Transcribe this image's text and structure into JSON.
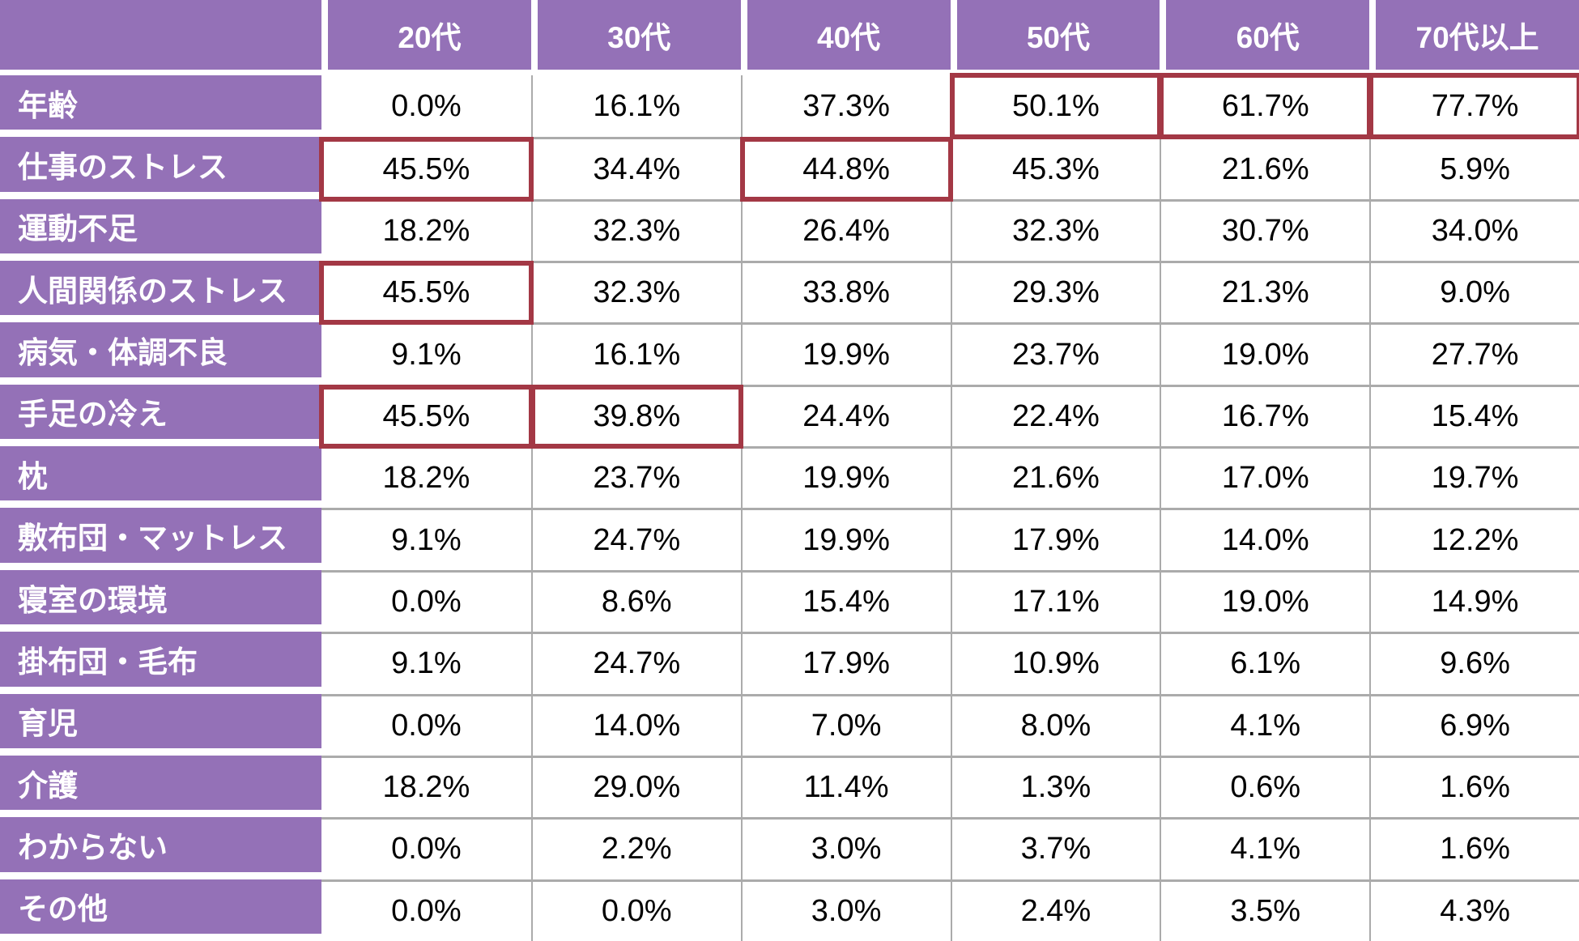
{
  "chart_data": {
    "type": "table",
    "title": "",
    "unit": "%",
    "columns": [
      "20代",
      "30代",
      "40代",
      "50代",
      "60代",
      "70代以上"
    ],
    "rows": [
      {
        "label": "年齢",
        "values": [
          0.0,
          16.1,
          37.3,
          50.1,
          61.7,
          77.7
        ],
        "display": [
          "0.0%",
          "16.1%",
          "37.3%",
          "50.1%",
          "61.7%",
          "77.7%"
        ]
      },
      {
        "label": "仕事のストレス",
        "values": [
          45.5,
          34.4,
          44.8,
          45.3,
          21.6,
          5.9
        ],
        "display": [
          "45.5%",
          "34.4%",
          "44.8%",
          "45.3%",
          "21.6%",
          "5.9%"
        ]
      },
      {
        "label": "運動不足",
        "values": [
          18.2,
          32.3,
          26.4,
          32.3,
          30.7,
          34.0
        ],
        "display": [
          "18.2%",
          "32.3%",
          "26.4%",
          "32.3%",
          "30.7%",
          "34.0%"
        ]
      },
      {
        "label": "人間関係のストレス",
        "values": [
          45.5,
          32.3,
          33.8,
          29.3,
          21.3,
          9.0
        ],
        "display": [
          "45.5%",
          "32.3%",
          "33.8%",
          "29.3%",
          "21.3%",
          "9.0%"
        ]
      },
      {
        "label": "病気・体調不良",
        "values": [
          9.1,
          16.1,
          19.9,
          23.7,
          19.0,
          27.7
        ],
        "display": [
          "9.1%",
          "16.1%",
          "19.9%",
          "23.7%",
          "19.0%",
          "27.7%"
        ]
      },
      {
        "label": "手足の冷え",
        "values": [
          45.5,
          39.8,
          24.4,
          22.4,
          16.7,
          15.4
        ],
        "display": [
          "45.5%",
          "39.8%",
          "24.4%",
          "22.4%",
          "16.7%",
          "15.4%"
        ]
      },
      {
        "label": "枕",
        "values": [
          18.2,
          23.7,
          19.9,
          21.6,
          17.0,
          19.7
        ],
        "display": [
          "18.2%",
          "23.7%",
          "19.9%",
          "21.6%",
          "17.0%",
          "19.7%"
        ]
      },
      {
        "label": "敷布団・マットレス",
        "values": [
          9.1,
          24.7,
          19.9,
          17.9,
          14.0,
          12.2
        ],
        "display": [
          "9.1%",
          "24.7%",
          "19.9%",
          "17.9%",
          "14.0%",
          "12.2%"
        ]
      },
      {
        "label": "寝室の環境",
        "values": [
          0.0,
          8.6,
          15.4,
          17.1,
          19.0,
          14.9
        ],
        "display": [
          "0.0%",
          "8.6%",
          "15.4%",
          "17.1%",
          "19.0%",
          "14.9%"
        ]
      },
      {
        "label": "掛布団・毛布",
        "values": [
          9.1,
          24.7,
          17.9,
          10.9,
          6.1,
          9.6
        ],
        "display": [
          "9.1%",
          "24.7%",
          "17.9%",
          "10.9%",
          "6.1%",
          "9.6%"
        ]
      },
      {
        "label": "育児",
        "values": [
          0.0,
          14.0,
          7.0,
          8.0,
          4.1,
          6.9
        ],
        "display": [
          "0.0%",
          "14.0%",
          "7.0%",
          "8.0%",
          "4.1%",
          "6.9%"
        ]
      },
      {
        "label": "介護",
        "values": [
          18.2,
          29.0,
          11.4,
          1.3,
          0.6,
          1.6
        ],
        "display": [
          "18.2%",
          "29.0%",
          "11.4%",
          "1.3%",
          "0.6%",
          "1.6%"
        ]
      },
      {
        "label": "わからない",
        "values": [
          0.0,
          2.2,
          3.0,
          3.7,
          4.1,
          1.6
        ],
        "display": [
          "0.0%",
          "2.2%",
          "3.0%",
          "3.7%",
          "4.1%",
          "1.6%"
        ]
      },
      {
        "label": "その他",
        "values": [
          0.0,
          0.0,
          3.0,
          2.4,
          3.5,
          4.3
        ],
        "display": [
          "0.0%",
          "0.0%",
          "3.0%",
          "2.4%",
          "3.5%",
          "4.3%"
        ]
      }
    ],
    "highlighted_cells": [
      [
        0,
        3
      ],
      [
        0,
        4
      ],
      [
        0,
        5
      ],
      [
        1,
        0
      ],
      [
        1,
        2
      ],
      [
        3,
        0
      ],
      [
        5,
        0
      ],
      [
        5,
        1
      ]
    ],
    "layout": {
      "grid": true,
      "legend": "none",
      "header_position": "top",
      "row_labels_position": "left"
    },
    "colors": {
      "header_background": "#9471B7",
      "row_label_background": "#9471B7",
      "header_text": "#FFFFFF",
      "cell_text": "#000000",
      "highlight_border": "#A33845",
      "gridline": "#ABABAB",
      "cell_background": "#FFFFFF"
    }
  }
}
